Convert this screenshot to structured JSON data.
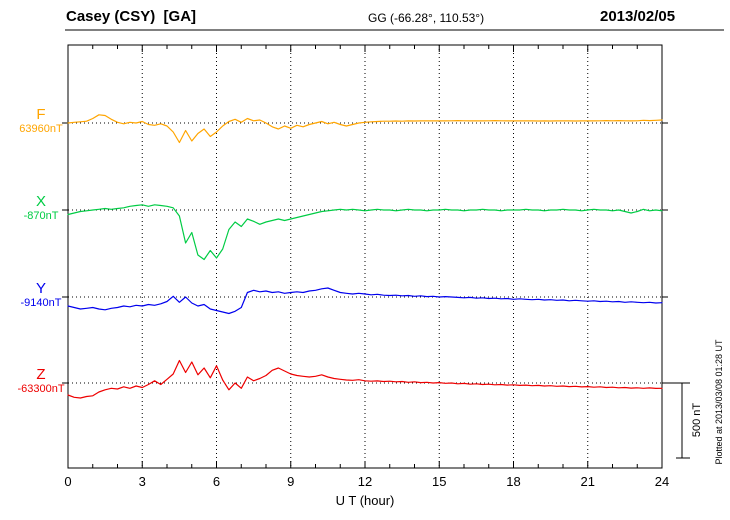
{
  "header": {
    "station_title": "Casey (CSY)  [GA]",
    "coordinates": "GG (-66.28°, 110.53°)",
    "date": "2013/02/05"
  },
  "x_axis": {
    "label": "U T (hour)"
  },
  "scale_bar": {
    "label": "500 nT"
  },
  "plot_note": "Plotted at 2013/03/08 01:28 UT",
  "chart_data": {
    "type": "line",
    "title": "Casey (CSY) [GA] magnetogram 2013/02/05",
    "xlabel": "U T (hour)",
    "x_hours": {
      "start": 0,
      "end": 24,
      "step": 0.25
    },
    "x_ticks": [
      0,
      3,
      6,
      9,
      12,
      15,
      18,
      21,
      24
    ],
    "grid": "dotted vertical lines every 3 h; dotted horizontal baseline per component",
    "scale_bar_nT": 500,
    "series": [
      {
        "name": "F",
        "baseline_label": "63960nT",
        "baseline_nT": 63960,
        "color": "#ffa500",
        "offsets_nT": [
          0,
          5,
          8,
          12,
          30,
          55,
          50,
          25,
          5,
          -5,
          5,
          0,
          10,
          -10,
          -15,
          -5,
          -20,
          -60,
          -130,
          -50,
          -120,
          -70,
          -40,
          -90,
          -60,
          -20,
          10,
          25,
          5,
          30,
          15,
          20,
          0,
          -25,
          -40,
          -20,
          -35,
          -15,
          -25,
          -10,
          0,
          10,
          -5,
          5,
          -10,
          -20,
          -10,
          0,
          5,
          8,
          10,
          12,
          12,
          13,
          12,
          14,
          13,
          14,
          15,
          14,
          15,
          14,
          15,
          16,
          15,
          14,
          15,
          14,
          15,
          16,
          15,
          14,
          15,
          14,
          15,
          14,
          13,
          14,
          13,
          14,
          15,
          14,
          13,
          14,
          15,
          14,
          15,
          16,
          15,
          16,
          15,
          14,
          15,
          18,
          16,
          18,
          20
        ]
      },
      {
        "name": "X",
        "baseline_label": "-870nT",
        "baseline_nT": -870,
        "color": "#00cc44",
        "offsets_nT": [
          -30,
          -20,
          -10,
          -5,
          0,
          5,
          10,
          5,
          10,
          15,
          25,
          30,
          35,
          25,
          35,
          30,
          25,
          15,
          -40,
          -220,
          -150,
          -300,
          -330,
          -270,
          -320,
          -260,
          -130,
          -80,
          -110,
          -60,
          -75,
          -95,
          -80,
          -70,
          -60,
          -70,
          -60,
          -50,
          -40,
          -30,
          -20,
          -10,
          -5,
          0,
          5,
          0,
          5,
          0,
          -5,
          0,
          5,
          0,
          0,
          -5,
          0,
          5,
          0,
          0,
          -5,
          0,
          0,
          5,
          0,
          0,
          -5,
          0,
          0,
          5,
          0,
          0,
          -5,
          0,
          0,
          0,
          5,
          0,
          0,
          -5,
          0,
          0,
          5,
          0,
          0,
          -5,
          0,
          5,
          0,
          0,
          -5,
          0,
          -10,
          -20,
          -10,
          5,
          -5,
          0,
          -5
        ]
      },
      {
        "name": "Y",
        "baseline_label": "-9140nT",
        "baseline_nT": -9140,
        "color": "#0000ee",
        "offsets_nT": [
          -60,
          -70,
          -80,
          -75,
          -70,
          -80,
          -85,
          -75,
          -70,
          -60,
          -65,
          -55,
          -60,
          -50,
          -55,
          -45,
          -30,
          5,
          -35,
          0,
          -40,
          -60,
          -50,
          -80,
          -90,
          -100,
          -110,
          -95,
          -70,
          30,
          45,
          35,
          40,
          30,
          35,
          25,
          30,
          35,
          30,
          40,
          45,
          55,
          60,
          45,
          30,
          25,
          20,
          25,
          20,
          15,
          18,
          12,
          10,
          12,
          8,
          10,
          5,
          8,
          3,
          5,
          0,
          3,
          0,
          -3,
          -5,
          -3,
          -8,
          -5,
          -10,
          -8,
          -12,
          -10,
          -15,
          -12,
          -15,
          -18,
          -15,
          -20,
          -18,
          -22,
          -20,
          -25,
          -22,
          -25,
          -28,
          -25,
          -30,
          -28,
          -32,
          -30,
          -35,
          -32,
          -35,
          -38,
          -35,
          -40,
          -38
        ]
      },
      {
        "name": "Z",
        "baseline_label": "-63300nT",
        "baseline_nT": -63300,
        "color": "#ee0000",
        "offsets_nT": [
          -80,
          -95,
          -100,
          -90,
          -85,
          -60,
          -45,
          -35,
          -40,
          -25,
          -35,
          -20,
          -30,
          -10,
          15,
          -10,
          25,
          60,
          150,
          70,
          140,
          55,
          100,
          35,
          115,
          20,
          -45,
          0,
          -35,
          40,
          15,
          30,
          50,
          85,
          100,
          80,
          60,
          50,
          45,
          40,
          45,
          55,
          40,
          30,
          25,
          20,
          18,
          22,
          15,
          12,
          14,
          10,
          12,
          8,
          10,
          5,
          8,
          3,
          5,
          0,
          3,
          -2,
          0,
          -5,
          -3,
          -8,
          -5,
          -10,
          -8,
          -12,
          -10,
          -14,
          -12,
          -16,
          -14,
          -18,
          -16,
          -20,
          -18,
          -22,
          -20,
          -24,
          -22,
          -26,
          -24,
          -28,
          -25,
          -30,
          -28,
          -32,
          -30,
          -34,
          -32,
          -35,
          -33,
          -36,
          -35
        ]
      }
    ]
  }
}
